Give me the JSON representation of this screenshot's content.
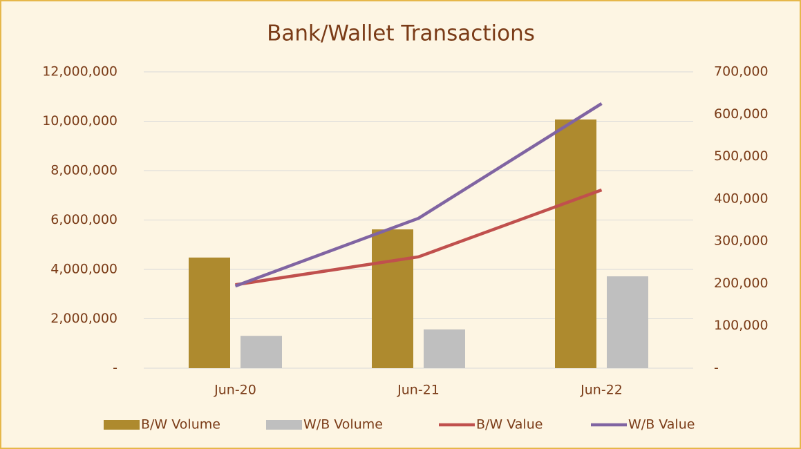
{
  "chart_data": {
    "type": "combo",
    "title": "Bank/Wallet Transactions",
    "categories": [
      "Jun-20",
      "Jun-21",
      "Jun-22"
    ],
    "series": [
      {
        "name": "B/W Volume",
        "type": "bar",
        "color": "#ae8a2e",
        "values": [
          4480000,
          5620000,
          10070000
        ]
      },
      {
        "name": "W/B Volume",
        "type": "bar",
        "color": "#bfbfbf",
        "values": [
          1310000,
          1570000,
          3720000
        ]
      },
      {
        "name": "B/W Value",
        "type": "line",
        "axis": "y2",
        "color": "#c0504d",
        "values": [
          197000,
          263000,
          421000
        ]
      },
      {
        "name": "W/B Value",
        "type": "line",
        "axis": "y2",
        "color": "#8064a2",
        "values": [
          194000,
          354000,
          625000
        ]
      }
    ],
    "ylim": [
      0,
      12000000
    ],
    "yticks": [
      {
        "value": 0,
        "label": "-"
      },
      {
        "value": 2000000,
        "label": "2,000,000"
      },
      {
        "value": 4000000,
        "label": "4,000,000"
      },
      {
        "value": 6000000,
        "label": "6,000,000"
      },
      {
        "value": 8000000,
        "label": "8,000,000"
      },
      {
        "value": 10000000,
        "label": "10,000,000"
      },
      {
        "value": 12000000,
        "label": "12,000,000"
      }
    ],
    "y2lim": [
      0,
      700000
    ],
    "y2ticks": [
      {
        "value": 0,
        "label": "-"
      },
      {
        "value": 100000,
        "label": "100,000"
      },
      {
        "value": 200000,
        "label": "200,000"
      },
      {
        "value": 300000,
        "label": "300,000"
      },
      {
        "value": 400000,
        "label": "400,000"
      },
      {
        "value": 500000,
        "label": "500,000"
      },
      {
        "value": 600000,
        "label": "600,000"
      },
      {
        "value": 700000,
        "label": "700,000"
      }
    ],
    "grid": true,
    "legend": "bottom"
  }
}
